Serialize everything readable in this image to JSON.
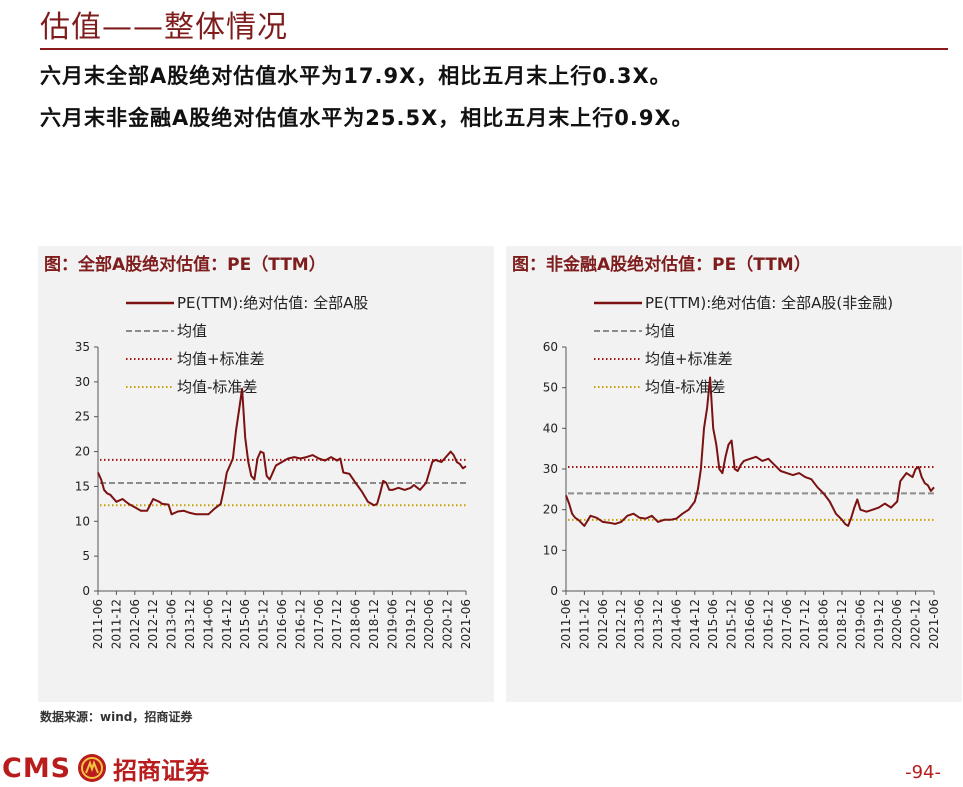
{
  "header": {
    "title": "估值——整体情况",
    "line1": "六月末全部A股绝对估值水平为17.9X，相比五月末上行0.3X。",
    "line2": "六月末非金融A股绝对估值水平为25.5X，相比五月末上行0.9X。"
  },
  "footer": {
    "source": "数据来源：wind，招商证券",
    "logo_text": "CMS",
    "logo_cn": "招商证券",
    "page_number": "-94-"
  },
  "colors": {
    "series": "#7b1111",
    "mean": "#8c8c8c",
    "upper": "#a01010",
    "lower": "#c8a000",
    "accent": "#7f1d1d"
  },
  "chart_data": [
    {
      "type": "line",
      "panel_title": "图：全部A股绝对估值：PE（TTM）",
      "ylim": [
        0,
        35
      ],
      "yticks": [
        0,
        5,
        10,
        15,
        20,
        25,
        30,
        35
      ],
      "xlim": [
        "2011-06",
        "2021-06"
      ],
      "xticks": [
        "2011-06",
        "2011-12",
        "2012-06",
        "2012-12",
        "2013-06",
        "2013-12",
        "2014-06",
        "2014-12",
        "2015-06",
        "2015-12",
        "2016-06",
        "2016-12",
        "2017-06",
        "2017-12",
        "2018-06",
        "2018-12",
        "2019-06",
        "2019-12",
        "2020-06",
        "2020-12",
        "2021-06"
      ],
      "legend": [
        "PE(TTM):绝对估值: 全部A股",
        "均值",
        "均值+标准差",
        "均值-标准差"
      ],
      "mean": 15.5,
      "upper": 18.8,
      "lower": 12.3,
      "series": {
        "name": "PE(TTM):绝对估值: 全部A股",
        "x": [
          "2011-06",
          "2011-07",
          "2011-08",
          "2011-09",
          "2011-10",
          "2011-12",
          "2012-02",
          "2012-04",
          "2012-06",
          "2012-08",
          "2012-10",
          "2012-12",
          "2013-02",
          "2013-03",
          "2013-05",
          "2013-06",
          "2013-08",
          "2013-10",
          "2013-12",
          "2014-02",
          "2014-04",
          "2014-06",
          "2014-08",
          "2014-10",
          "2014-11",
          "2014-12",
          "2015-01",
          "2015-02",
          "2015-03",
          "2015-04",
          "2015-05",
          "2015-06",
          "2015-07",
          "2015-08",
          "2015-09",
          "2015-10",
          "2015-11",
          "2015-12",
          "2016-01",
          "2016-02",
          "2016-03",
          "2016-04",
          "2016-06",
          "2016-08",
          "2016-10",
          "2016-12",
          "2017-02",
          "2017-04",
          "2017-06",
          "2017-08",
          "2017-10",
          "2017-12",
          "2018-01",
          "2018-02",
          "2018-04",
          "2018-06",
          "2018-08",
          "2018-10",
          "2018-12",
          "2019-01",
          "2019-02",
          "2019-03",
          "2019-04",
          "2019-05",
          "2019-06",
          "2019-08",
          "2019-10",
          "2019-12",
          "2020-01",
          "2020-03",
          "2020-05",
          "2020-07",
          "2020-08",
          "2020-10",
          "2020-12",
          "2021-01",
          "2021-02",
          "2021-03",
          "2021-04",
          "2021-05",
          "2021-06"
        ],
        "values": [
          17.0,
          16.0,
          14.5,
          14.0,
          13.8,
          12.8,
          13.2,
          12.5,
          12.0,
          11.5,
          11.5,
          13.2,
          12.8,
          12.5,
          12.4,
          11.0,
          11.4,
          11.5,
          11.2,
          11.0,
          11.0,
          11.0,
          11.8,
          12.5,
          14.5,
          17.0,
          18.0,
          19.0,
          23.0,
          26.0,
          29.0,
          22.0,
          18.5,
          16.5,
          16.0,
          19.0,
          20.0,
          19.8,
          16.5,
          16.0,
          17.0,
          18.0,
          18.5,
          19.0,
          19.2,
          19.0,
          19.2,
          19.5,
          19.0,
          18.7,
          19.2,
          18.7,
          19.0,
          17.0,
          16.8,
          15.5,
          14.3,
          12.8,
          12.3,
          12.5,
          14.0,
          15.8,
          15.5,
          14.5,
          14.5,
          14.8,
          14.5,
          14.8,
          15.2,
          14.5,
          15.5,
          18.5,
          18.8,
          18.5,
          19.5,
          20.0,
          19.5,
          18.5,
          18.2,
          17.6,
          17.9
        ]
      }
    },
    {
      "type": "line",
      "panel_title": "图：非金融A股绝对估值：PE（TTM）",
      "ylim": [
        0,
        60
      ],
      "yticks": [
        0,
        10,
        20,
        30,
        40,
        50,
        60
      ],
      "xlim": [
        "2011-06",
        "2021-06"
      ],
      "xticks": [
        "2011-06",
        "2011-12",
        "2012-06",
        "2012-12",
        "2013-06",
        "2013-12",
        "2014-06",
        "2014-12",
        "2015-06",
        "2015-12",
        "2016-06",
        "2016-12",
        "2017-06",
        "2017-12",
        "2018-06",
        "2018-12",
        "2019-06",
        "2019-12",
        "2020-06",
        "2020-12",
        "2021-06"
      ],
      "legend": [
        "PE(TTM):绝对估值: 全部A股(非金融)",
        "均值",
        "均值+标准差",
        "均值-标准差"
      ],
      "mean": 24.0,
      "upper": 30.5,
      "lower": 17.5,
      "series": {
        "name": "PE(TTM):绝对估值: 全部A股(非金融)",
        "x": [
          "2011-06",
          "2011-07",
          "2011-08",
          "2011-09",
          "2011-10",
          "2011-12",
          "2012-02",
          "2012-04",
          "2012-06",
          "2012-08",
          "2012-10",
          "2012-12",
          "2013-02",
          "2013-04",
          "2013-06",
          "2013-08",
          "2013-10",
          "2013-12",
          "2014-02",
          "2014-04",
          "2014-06",
          "2014-08",
          "2014-10",
          "2014-12",
          "2015-01",
          "2015-02",
          "2015-03",
          "2015-04",
          "2015-05",
          "2015-06",
          "2015-07",
          "2015-08",
          "2015-09",
          "2015-10",
          "2015-11",
          "2015-12",
          "2016-01",
          "2016-02",
          "2016-03",
          "2016-04",
          "2016-06",
          "2016-08",
          "2016-10",
          "2016-12",
          "2017-02",
          "2017-04",
          "2017-06",
          "2017-08",
          "2017-10",
          "2017-12",
          "2018-02",
          "2018-04",
          "2018-06",
          "2018-08",
          "2018-10",
          "2018-12",
          "2019-01",
          "2019-02",
          "2019-03",
          "2019-04",
          "2019-05",
          "2019-06",
          "2019-08",
          "2019-10",
          "2019-12",
          "2020-02",
          "2020-04",
          "2020-06",
          "2020-07",
          "2020-09",
          "2020-11",
          "2020-12",
          "2021-01",
          "2021-02",
          "2021-03",
          "2021-04",
          "2021-05",
          "2021-06"
        ],
        "values": [
          23.5,
          21.5,
          19.0,
          18.0,
          17.5,
          16.0,
          18.5,
          18.0,
          17.0,
          16.8,
          16.5,
          17.0,
          18.5,
          19.0,
          18.0,
          17.8,
          18.5,
          17.0,
          17.5,
          17.5,
          17.8,
          19.0,
          20.0,
          22.0,
          25.0,
          30.0,
          40.0,
          45.0,
          52.5,
          40.0,
          36.0,
          30.0,
          29.0,
          33.0,
          36.0,
          37.0,
          30.0,
          29.5,
          31.0,
          32.0,
          32.5,
          33.0,
          32.0,
          32.5,
          31.0,
          29.5,
          29.0,
          28.5,
          29.0,
          28.0,
          27.5,
          25.5,
          24.0,
          22.0,
          19.0,
          17.5,
          16.5,
          16.0,
          18.0,
          20.5,
          22.5,
          20.0,
          19.5,
          20.0,
          20.5,
          21.5,
          20.5,
          22.0,
          27.0,
          29.0,
          28.0,
          30.0,
          30.5,
          28.0,
          26.5,
          26.0,
          24.6,
          25.5
        ]
      }
    }
  ]
}
